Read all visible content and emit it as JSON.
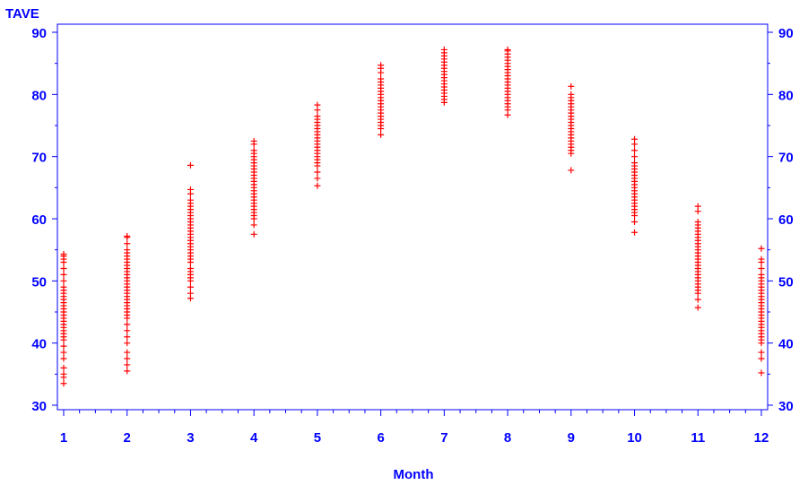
{
  "chart_data": {
    "type": "scatter",
    "title": "",
    "xlabel": "Month",
    "ylabel": "TAVE",
    "xlim": [
      1,
      12
    ],
    "ylim": [
      30,
      90
    ],
    "x_ticks": [
      1,
      2,
      3,
      4,
      5,
      6,
      7,
      8,
      9,
      10,
      11,
      12
    ],
    "y_ticks": [
      30,
      40,
      50,
      60,
      70,
      80,
      90
    ],
    "right_y_axis": true,
    "grid": false,
    "marker": "+",
    "colors": {
      "axis": "#0000ff",
      "marker": "#ff0000"
    },
    "series": [
      {
        "values_by_month": [
          [
            33.5,
            34.5,
            35,
            36,
            37.5,
            38.5,
            39.5,
            40.5,
            41,
            41.5,
            42,
            42.5,
            43,
            43.5,
            44,
            44.5,
            45,
            45.5,
            46,
            46.5,
            47,
            47.5,
            48,
            48.5,
            49,
            50,
            51,
            52,
            53,
            53.5,
            54,
            54.3
          ],
          [
            35.5,
            36.5,
            37.5,
            38.5,
            40,
            41,
            42,
            43,
            44,
            44.5,
            45,
            45.5,
            46,
            46.5,
            47,
            47.5,
            48,
            48.5,
            49,
            49.5,
            50,
            50.5,
            51,
            51.5,
            52,
            52.5,
            53,
            53.5,
            54,
            54.5,
            55,
            56,
            57,
            57.2
          ],
          [
            47.2,
            48,
            49,
            50,
            50.5,
            51,
            51.5,
            52,
            53,
            53.5,
            54,
            54.5,
            55,
            55.5,
            56,
            56.5,
            57,
            57.5,
            58,
            58.5,
            59,
            59.5,
            60,
            60.5,
            61,
            61.5,
            62,
            62.5,
            63,
            64,
            64.7,
            68.6
          ],
          [
            57.5,
            59,
            60,
            60.5,
            61,
            61.5,
            62,
            62.5,
            63,
            63.5,
            64,
            64.5,
            65,
            65.5,
            66,
            66.5,
            67,
            67.5,
            68,
            68.5,
            69,
            69.5,
            70,
            70.5,
            71,
            72,
            72.5
          ],
          [
            65.3,
            66.5,
            67.5,
            68.5,
            69,
            69.5,
            70,
            70.5,
            71,
            71.5,
            72,
            72.5,
            73,
            73.5,
            74,
            74.5,
            75,
            75.5,
            76,
            76.5,
            77.5,
            78.3
          ],
          [
            73.5,
            74.5,
            75,
            75.5,
            76,
            76.5,
            77,
            77.5,
            78,
            78.5,
            79,
            79.5,
            80,
            80.5,
            81,
            81.5,
            82,
            82.5,
            83.5,
            84.2,
            84.7
          ],
          [
            78.7,
            79.2,
            79.7,
            80.2,
            80.7,
            81.2,
            81.7,
            82.2,
            82.7,
            83.2,
            83.7,
            84.2,
            84.7,
            85.2,
            85.7,
            86.2,
            86.7,
            87.2
          ],
          [
            76.7,
            77.5,
            78,
            78.5,
            79,
            79.5,
            80,
            80.5,
            81,
            81.5,
            82,
            82.5,
            83,
            83.5,
            84,
            84.5,
            85,
            85.5,
            86,
            86.5,
            87,
            87.2
          ],
          [
            67.8,
            70.5,
            71,
            71.5,
            72,
            72.5,
            73,
            73.5,
            74,
            74.5,
            75,
            75.5,
            76,
            76.5,
            77,
            77.5,
            78,
            78.5,
            79,
            79.5,
            80,
            81.3
          ],
          [
            57.8,
            59.5,
            60.5,
            61,
            61.5,
            62,
            62.5,
            63,
            63.5,
            64,
            64.5,
            65,
            65.5,
            66,
            66.5,
            67,
            67.5,
            68,
            68.5,
            69,
            70,
            71,
            72,
            72.8
          ],
          [
            45.7,
            47,
            48,
            48.5,
            49,
            49.5,
            50,
            50.5,
            51,
            51.5,
            52,
            52.5,
            53,
            53.5,
            54,
            54.5,
            55,
            55.5,
            56,
            56.5,
            57,
            57.5,
            58,
            58.5,
            59,
            59.5,
            61.2,
            62
          ],
          [
            35.2,
            37.5,
            38.5,
            40,
            40.5,
            41,
            41.5,
            42,
            42.5,
            43,
            43.5,
            44,
            44.5,
            45,
            45.5,
            46,
            46.5,
            47,
            47.5,
            48,
            48.5,
            49,
            49.5,
            50,
            50.5,
            51,
            52,
            53,
            53.5,
            55.2
          ]
        ]
      }
    ]
  }
}
